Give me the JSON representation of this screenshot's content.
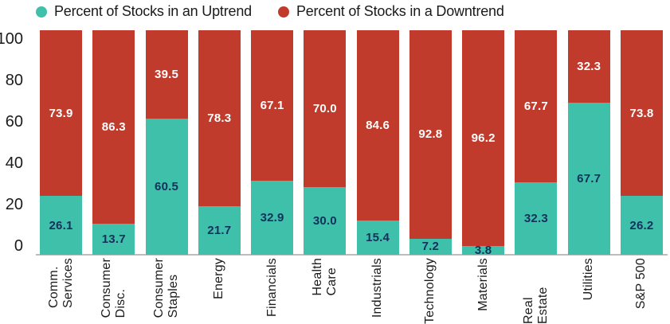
{
  "legend": {
    "items": [
      {
        "label": "Percent of Stocks in an Uptrend",
        "color": "#3FC0AA"
      },
      {
        "label": "Percent of Stocks in a Downtrend",
        "color": "#C03B2B"
      }
    ]
  },
  "y_axis": {
    "ticks": [
      "100",
      "80",
      "60",
      "40",
      "20",
      "0"
    ]
  },
  "chart_data": {
    "type": "bar",
    "stacked": true,
    "title": "",
    "xlabel": "",
    "ylabel": "",
    "ylim": [
      0,
      100
    ],
    "yticks": [
      0,
      20,
      40,
      60,
      80,
      100
    ],
    "grid": false,
    "legend_position": "top",
    "categories": [
      "Comm. Services",
      "Consumer Disc.",
      "Consumer Staples",
      "Energy",
      "Financials",
      "Health Care",
      "Industrials",
      "Technology",
      "Materials",
      "Real Estate",
      "Utilities",
      "S&P 500"
    ],
    "categories_display": [
      "Comm.\nServices",
      "Consumer\nDisc.",
      "Consumer\nStaples",
      "Energy",
      "Financials",
      "Health\nCare",
      "Industrials",
      "Technology",
      "Materials",
      "Real Estate",
      "Utilities",
      "S&P 500"
    ],
    "series": [
      {
        "name": "Percent of Stocks in an Uptrend",
        "color": "#3FC0AA",
        "label_color": "#12315B",
        "values": [
          26.1,
          13.7,
          60.5,
          21.7,
          32.9,
          30.0,
          15.4,
          7.2,
          3.8,
          32.3,
          67.7,
          26.2
        ],
        "labels": [
          "26.1",
          "13.7",
          "60.5",
          "21.7",
          "32.9",
          "30.0",
          "15.4",
          "7.2",
          "3.8",
          "32.3",
          "67.7",
          "26.2"
        ]
      },
      {
        "name": "Percent of Stocks in a Downtrend",
        "color": "#C03B2B",
        "label_color": "#FFFFFF",
        "values": [
          73.9,
          86.3,
          39.5,
          78.3,
          67.1,
          70.0,
          84.6,
          92.8,
          96.2,
          67.7,
          32.3,
          73.8
        ],
        "labels": [
          "73.9",
          "86.3",
          "39.5",
          "78.3",
          "67.1",
          "70.0",
          "84.6",
          "92.8",
          "96.2",
          "67.7",
          "32.3",
          "73.8"
        ]
      }
    ]
  }
}
